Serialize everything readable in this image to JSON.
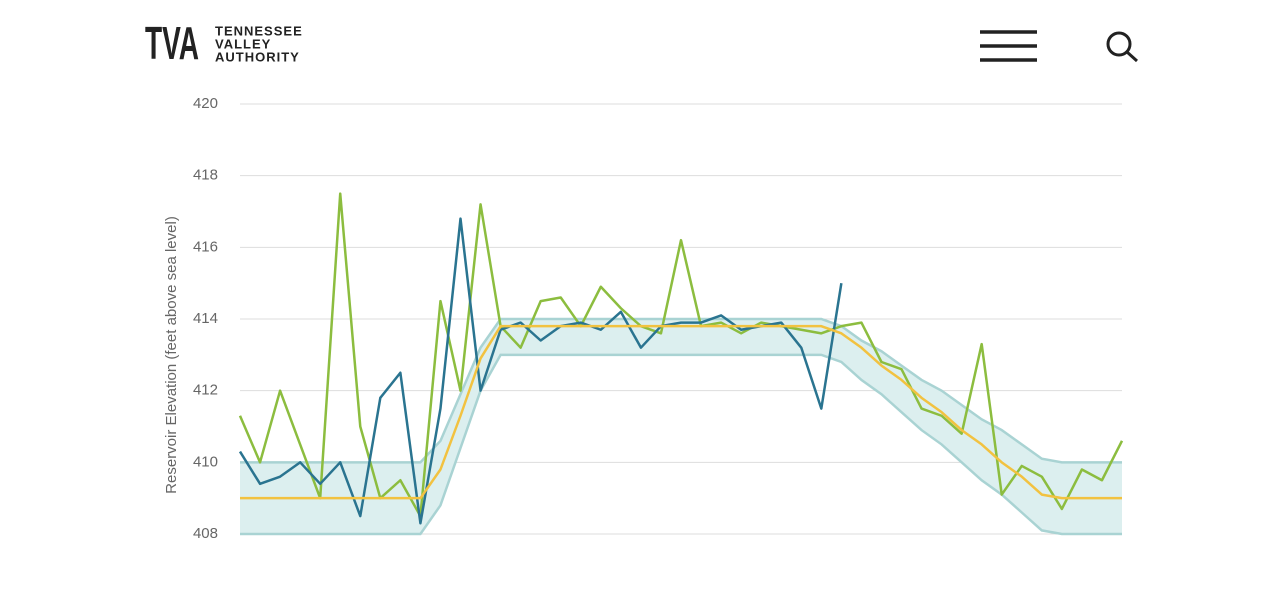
{
  "header": {
    "logo": "TVA",
    "name_lines": [
      "TENNESSEE",
      "VALLEY",
      "AUTHORITY"
    ]
  },
  "chart_data": {
    "type": "line",
    "y_label": "Reservoir Elevation (feet above sea level)",
    "ylim": [
      408,
      420
    ],
    "yticks": [
      408,
      410,
      412,
      414,
      416,
      418,
      420
    ],
    "grid": true,
    "band": {
      "color": "#dcefef",
      "edge_color": "#a9d3d3",
      "upper": [
        410,
        410,
        410,
        410,
        410,
        410,
        410,
        410,
        410,
        410,
        410.6,
        411.9,
        413.2,
        414,
        414,
        414,
        414,
        414,
        414,
        414,
        414,
        414,
        414,
        414,
        414,
        414,
        414,
        414,
        414,
        414,
        413.8,
        413.4,
        413.1,
        412.7,
        412.3,
        412,
        411.6,
        411.2,
        410.9,
        410.5,
        410.1,
        410,
        410,
        410,
        410
      ],
      "lower": [
        408,
        408,
        408,
        408,
        408,
        408,
        408,
        408,
        408,
        408,
        408.8,
        410.4,
        412,
        413,
        413,
        413,
        413,
        413,
        413,
        413,
        413,
        413,
        413,
        413,
        413,
        413,
        413,
        413,
        413,
        413,
        412.8,
        412.3,
        411.9,
        411.4,
        410.9,
        410.5,
        410,
        409.5,
        409.1,
        408.6,
        408.1,
        408,
        408,
        408,
        408
      ]
    },
    "series": [
      {
        "color": "#8cbd3f",
        "values": [
          411.3,
          410,
          412,
          410.5,
          409,
          417.5,
          411,
          409,
          409.5,
          408.5,
          414.5,
          412,
          417.2,
          413.8,
          413.2,
          414.5,
          414.6,
          413.8,
          414.9,
          414.3,
          413.8,
          413.6,
          416.2,
          413.8,
          413.9,
          413.6,
          413.9,
          413.8,
          413.7,
          413.6,
          413.8,
          413.9,
          412.8,
          412.6,
          411.5,
          411.3,
          410.8,
          413.3,
          409.1,
          409.9,
          409.6,
          408.7,
          409.8,
          409.5,
          410.6
        ]
      },
      {
        "color": "#2a7490",
        "values": [
          410.3,
          409.4,
          409.6,
          410,
          409.4,
          410,
          408.5,
          411.8,
          412.5,
          408.3,
          411.5,
          416.8,
          412,
          413.7,
          413.9,
          413.4,
          413.8,
          413.9,
          413.7,
          414.2,
          413.2,
          413.8,
          413.9,
          413.9,
          414.1,
          413.7,
          413.8,
          413.9,
          413.2,
          411.5,
          415,
          null,
          null,
          null,
          null,
          null,
          null,
          null,
          null,
          null,
          null,
          null,
          null,
          null,
          null
        ]
      },
      {
        "color": "#f2c240",
        "values": [
          409,
          409,
          409,
          409,
          409,
          409,
          409,
          409,
          409,
          409,
          409.8,
          411.3,
          412.9,
          413.8,
          413.8,
          413.8,
          413.8,
          413.8,
          413.8,
          413.8,
          413.8,
          413.8,
          413.8,
          413.8,
          413.8,
          413.8,
          413.8,
          413.8,
          413.8,
          413.8,
          413.6,
          413.2,
          412.7,
          412.3,
          411.8,
          411.4,
          410.9,
          410.5,
          410,
          409.6,
          409.1,
          409,
          409,
          409,
          409
        ]
      }
    ]
  }
}
